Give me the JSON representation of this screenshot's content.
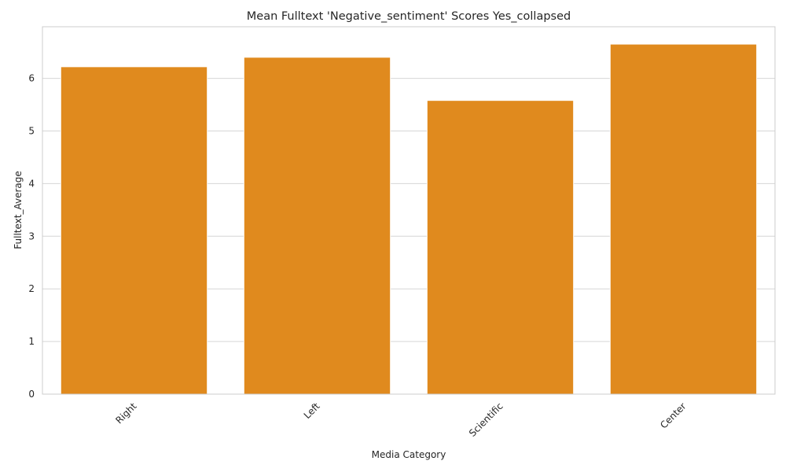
{
  "chart_data": {
    "type": "bar",
    "title": "Mean Fulltext 'Negative_sentiment' Scores Yes_collapsed",
    "xlabel": "Media Category",
    "ylabel": "Fulltext_Average",
    "categories": [
      "Right",
      "Left",
      "Scientific",
      "Center"
    ],
    "values": [
      6.22,
      6.4,
      5.58,
      6.65
    ],
    "ylim": [
      0,
      6.98
    ],
    "yticks": [
      0,
      1,
      2,
      3,
      4,
      5,
      6
    ],
    "grid": "y",
    "bar_color": "#e08a1e",
    "xtick_rotation": -45
  }
}
